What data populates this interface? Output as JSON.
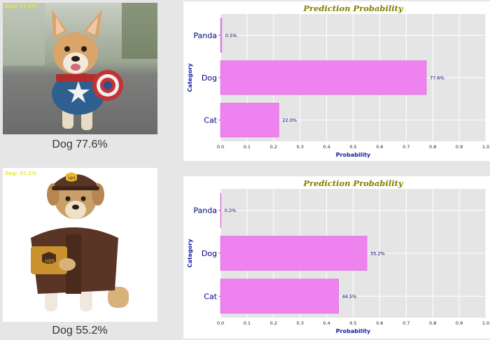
{
  "results": [
    {
      "overlay_label": "Dog: 77.6%",
      "caption": "Dog 77.6%",
      "photo_icon": "corgi-with-shield-photo"
    },
    {
      "overlay_label": "Dog: 55.2%",
      "caption": "Dog 55.2%",
      "photo_icon": "dog-in-delivery-costume-photo"
    }
  ],
  "colors": {
    "bar": "#ee82ee",
    "bar_edge": "#d66bd6",
    "title": "#808000",
    "axis_label": "#1a1aa6",
    "tick_text": "#000080",
    "plot_bg": "#e5e5e5",
    "overlay_text": "#e9e93a"
  },
  "chart_data": [
    {
      "type": "bar",
      "orientation": "horizontal",
      "title": "Prediction Probability",
      "xlabel": "Probability",
      "ylabel": "Category",
      "categories": [
        "Panda",
        "Dog",
        "Cat"
      ],
      "values": [
        0.005,
        0.776,
        0.22
      ],
      "value_labels": [
        "0.5%",
        "77.6%",
        "22.0%"
      ],
      "xticks": [
        "0.0",
        "0.1",
        "0.2",
        "0.3",
        "0.4",
        "0.5",
        "0.6",
        "0.7",
        "0.8",
        "0.9",
        "1.0"
      ],
      "xlim": [
        0,
        1
      ],
      "grid": true
    },
    {
      "type": "bar",
      "orientation": "horizontal",
      "title": "Prediction Probability",
      "xlabel": "Probability",
      "ylabel": "Category",
      "categories": [
        "Panda",
        "Dog",
        "Cat"
      ],
      "values": [
        0.002,
        0.552,
        0.445
      ],
      "value_labels": [
        "0.2%",
        "55.2%",
        "44.5%"
      ],
      "xticks": [
        "0.0",
        "0.1",
        "0.2",
        "0.3",
        "0.4",
        "0.5",
        "0.6",
        "0.7",
        "0.8",
        "0.9",
        "1.0"
      ],
      "xlim": [
        0,
        1
      ],
      "grid": true
    }
  ]
}
